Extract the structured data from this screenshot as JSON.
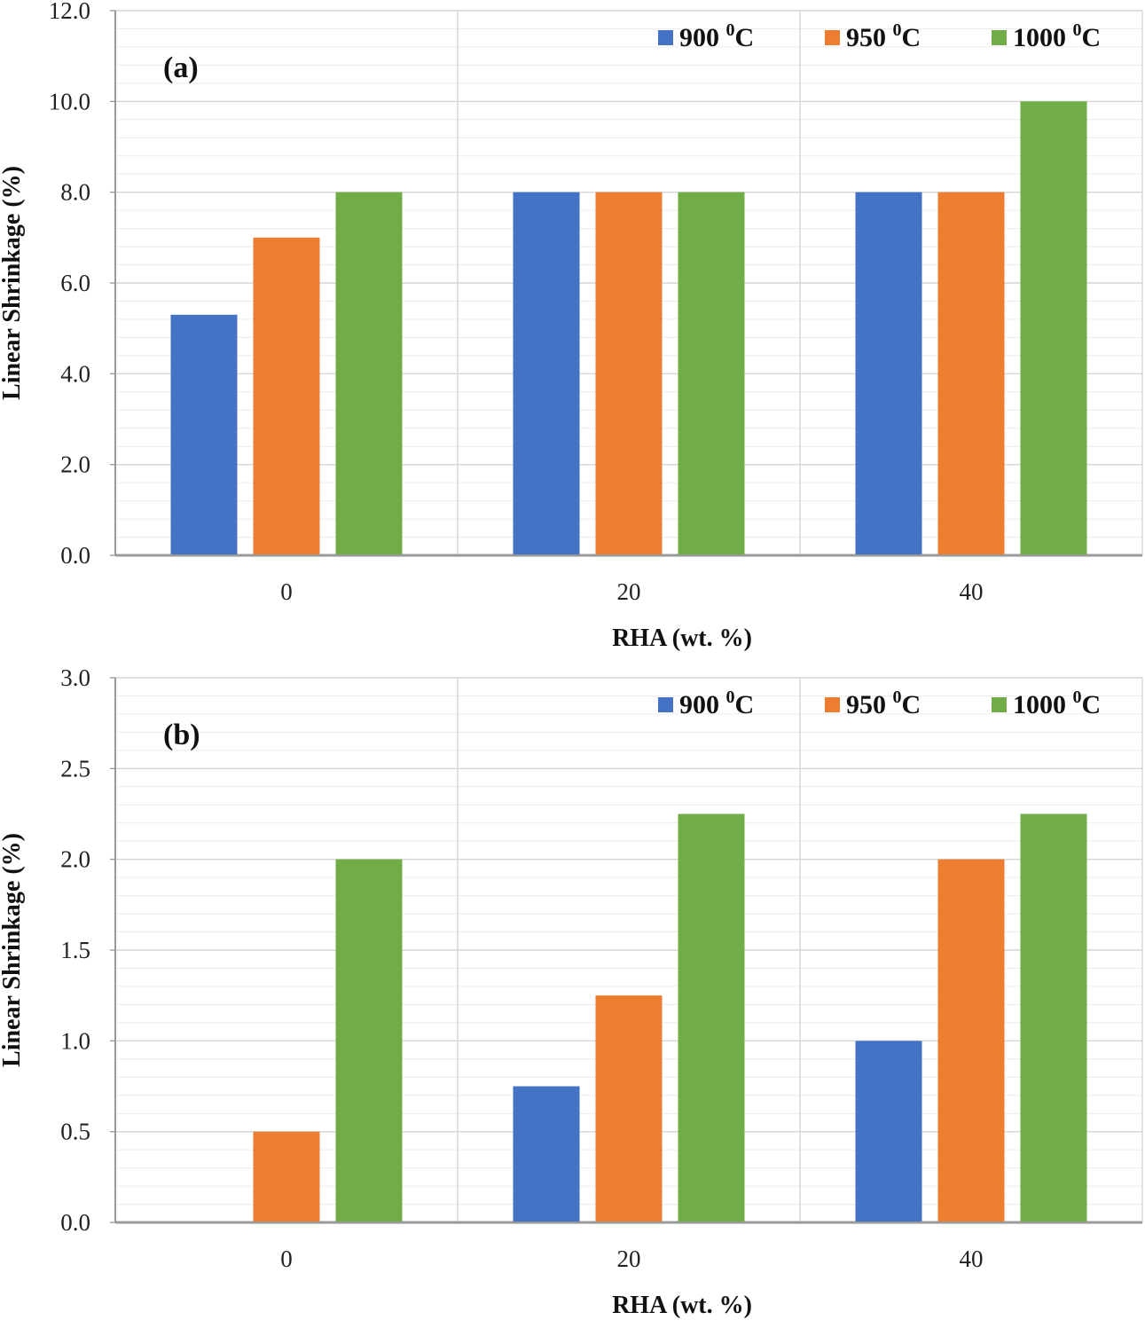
{
  "chart_data": [
    {
      "type": "bar",
      "panel_label": "(a)",
      "categories": [
        "0",
        "20",
        "40"
      ],
      "series": [
        {
          "name": "900",
          "name_sup": "0",
          "name_unit": "C",
          "color": "#4472c4",
          "values": [
            5.3,
            8.0,
            8.0
          ]
        },
        {
          "name": "950",
          "name_sup": "0",
          "name_unit": "C",
          "color": "#ed7d31",
          "values": [
            7.0,
            8.0,
            8.0
          ]
        },
        {
          "name": "1000",
          "name_sup": "0",
          "name_unit": "C",
          "color": "#70ad47",
          "values": [
            8.0,
            8.0,
            10.0
          ]
        }
      ],
      "xlabel": "RHA (wt. %)",
      "ylabel": "Linear Shrinkage (%)",
      "ylim": [
        0,
        12
      ],
      "y_ticks": [
        "0.0",
        "2.0",
        "4.0",
        "6.0",
        "8.0",
        "10.0",
        "12.0"
      ],
      "grid": true,
      "legend": "top-right"
    },
    {
      "type": "bar",
      "panel_label": "(b)",
      "categories": [
        "0",
        "20",
        "40"
      ],
      "series": [
        {
          "name": "900",
          "name_sup": "0",
          "name_unit": "C",
          "color": "#4472c4",
          "values": [
            0,
            0.75,
            1.0
          ]
        },
        {
          "name": "950",
          "name_sup": "0",
          "name_unit": "C",
          "color": "#ed7d31",
          "values": [
            0.5,
            1.25,
            2.0
          ]
        },
        {
          "name": "1000",
          "name_sup": "0",
          "name_unit": "C",
          "color": "#70ad47",
          "values": [
            2.0,
            2.25,
            2.25
          ]
        }
      ],
      "xlabel": "RHA (wt. %)",
      "ylabel": "Linear Shrinkage (%)",
      "ylim": [
        0,
        3
      ],
      "y_ticks": [
        "0.0",
        "0.5",
        "1.0",
        "1.5",
        "2.0",
        "2.5",
        "3.0"
      ],
      "grid": true,
      "legend": "top-right"
    }
  ]
}
